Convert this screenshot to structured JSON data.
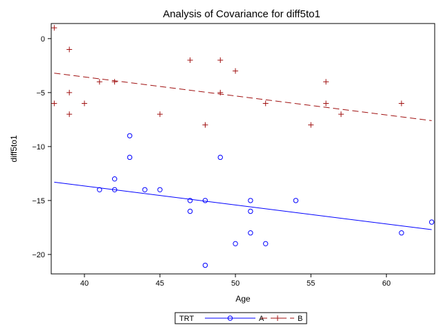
{
  "chart_data": {
    "type": "scatter",
    "title": "Analysis of Covariance for diff5to1",
    "xlabel": "Age",
    "ylabel": "diff5to1",
    "xlim": [
      37.8,
      63.2
    ],
    "ylim": [
      -21.8,
      1.4
    ],
    "xticks": [
      40,
      45,
      50,
      55,
      60
    ],
    "yticks": [
      0,
      -5,
      -10,
      -15,
      -20
    ],
    "xtick_labels": [
      "40",
      "45",
      "50",
      "55",
      "60"
    ],
    "ytick_labels": [
      "0",
      "−5",
      "−10",
      "−15",
      "−20"
    ],
    "grid": false,
    "legend_title": "TRT",
    "legend_position": "bottom",
    "series": [
      {
        "name": "A",
        "color": "#0000ff",
        "marker": "circle",
        "line_style": "solid",
        "points": [
          [
            41,
            -14
          ],
          [
            42,
            -13
          ],
          [
            42,
            -14
          ],
          [
            43,
            -9
          ],
          [
            43,
            -11
          ],
          [
            44,
            -14
          ],
          [
            45,
            -14
          ],
          [
            47,
            -15
          ],
          [
            47,
            -16
          ],
          [
            48,
            -15
          ],
          [
            48,
            -21
          ],
          [
            49,
            -11
          ],
          [
            50,
            -19
          ],
          [
            51,
            -15
          ],
          [
            51,
            -16
          ],
          [
            51,
            -18
          ],
          [
            52,
            -19
          ],
          [
            54,
            -15
          ],
          [
            61,
            -18
          ],
          [
            63,
            -17
          ]
        ],
        "fit_line": [
          [
            38,
            -13.3
          ],
          [
            63,
            -17.7
          ]
        ]
      },
      {
        "name": "B",
        "color": "#a01010",
        "marker": "plus",
        "line_style": "dashed",
        "points": [
          [
            38,
            1
          ],
          [
            38,
            -6
          ],
          [
            39,
            -1
          ],
          [
            39,
            -5
          ],
          [
            39,
            -7
          ],
          [
            40,
            -6
          ],
          [
            41,
            -4
          ],
          [
            42,
            -4
          ],
          [
            45,
            -7
          ],
          [
            47,
            -2
          ],
          [
            48,
            -8
          ],
          [
            49,
            -2
          ],
          [
            49,
            -5
          ],
          [
            50,
            -3
          ],
          [
            52,
            -6
          ],
          [
            55,
            -8
          ],
          [
            56,
            -4
          ],
          [
            56,
            -6
          ],
          [
            57,
            -7
          ],
          [
            61,
            -6
          ]
        ],
        "fit_line": [
          [
            38,
            -3.2
          ],
          [
            63,
            -7.6
          ]
        ]
      }
    ]
  }
}
